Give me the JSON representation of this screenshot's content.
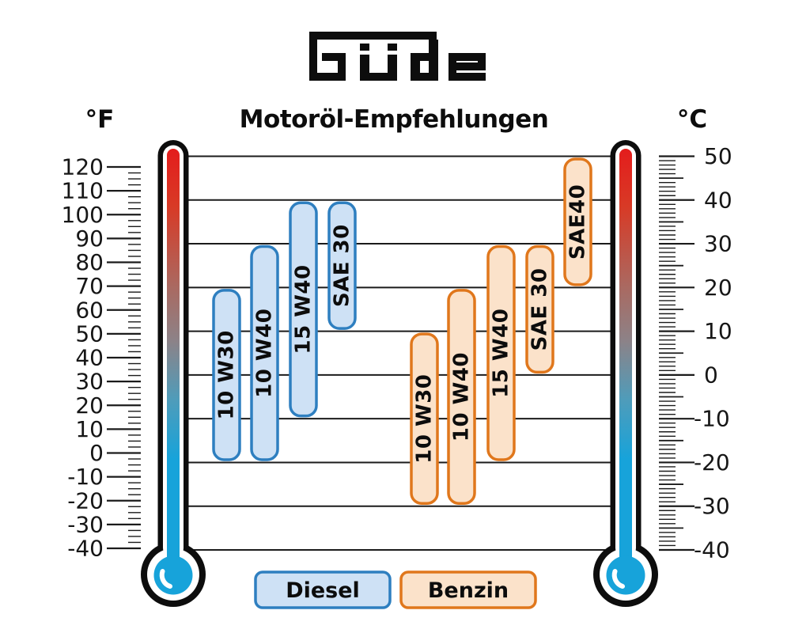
{
  "brand": {
    "logo_text": "Güde"
  },
  "title": "Motoröl-Empfehlungen",
  "units": {
    "left": "°F",
    "right": "°C"
  },
  "legend": {
    "diesel": "Diesel",
    "benzin": "Benzin"
  },
  "colors": {
    "background": "#ffffff",
    "grid": "#1b1b1b",
    "text": "#161616",
    "thermometer_red": "#e41c1c",
    "thermometer_blue": "#17a3da",
    "diesel_fill": "#cee1f5",
    "diesel_stroke": "#2e7fc0",
    "benzin_fill": "#fbe2ca",
    "benzin_stroke": "#e0771c"
  },
  "chart_data": {
    "type": "bar",
    "subtype": "floating-temperature-range-columns",
    "title": "Motoröl-Empfehlungen",
    "grid": true,
    "temperature_scales": {
      "fahrenheit": {
        "unit": "°F",
        "min": -40,
        "max": 120,
        "label_step": 10,
        "minor_step": 2.5,
        "labels": [
          120,
          110,
          100,
          90,
          80,
          70,
          60,
          50,
          40,
          30,
          20,
          10,
          0,
          -10,
          -20,
          -30,
          -40
        ]
      },
      "celsius": {
        "unit": "°C",
        "min": -40,
        "max": 50,
        "label_step": 10,
        "medium_step": 5,
        "minor_step": 1,
        "labels": [
          50,
          40,
          30,
          20,
          10,
          0,
          -10,
          -20,
          -30,
          -40
        ]
      }
    },
    "gridlines_celsius": [
      50,
      40,
      30,
      20,
      10,
      0,
      -10,
      -20,
      -30,
      -40
    ],
    "series": [
      {
        "name": "Diesel",
        "fill": "#cee1f5",
        "stroke": "#2e7fc0",
        "bars": [
          {
            "label": "10 W30",
            "min_c": -20,
            "max_c": 20
          },
          {
            "label": "10 W40",
            "min_c": -20,
            "max_c": 30
          },
          {
            "label": "15 W40",
            "min_c": -10,
            "max_c": 40
          },
          {
            "label": "SAE 30",
            "min_c": 10,
            "max_c": 40
          }
        ]
      },
      {
        "name": "Benzin",
        "fill": "#fbe2ca",
        "stroke": "#e0771c",
        "bars": [
          {
            "label": "10 W30",
            "min_c": -30,
            "max_c": 10
          },
          {
            "label": "10 W40",
            "min_c": -30,
            "max_c": 20
          },
          {
            "label": "15 W40",
            "min_c": -20,
            "max_c": 30
          },
          {
            "label": "SAE 30",
            "min_c": 0,
            "max_c": 30
          },
          {
            "label": "SAE40",
            "min_c": 20,
            "max_c": 50
          }
        ]
      }
    ],
    "legend": [
      {
        "label": "Diesel",
        "fill": "#cee1f5",
        "stroke": "#2e7fc0"
      },
      {
        "label": "Benzin",
        "fill": "#fbe2ca",
        "stroke": "#e0771c"
      }
    ]
  }
}
